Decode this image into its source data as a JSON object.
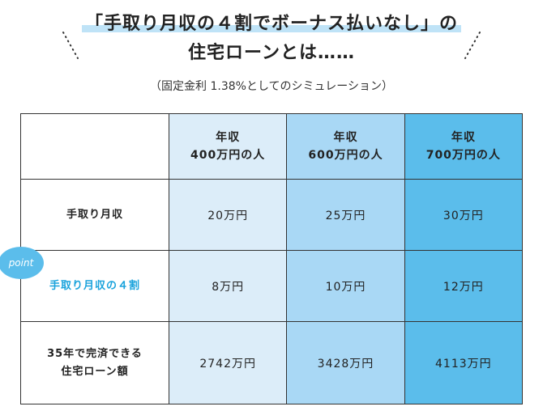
{
  "header": {
    "title_lines": [
      "「手取り月収の４割でボーナス払いなし」の",
      "住宅ローンとは……"
    ],
    "subtitle": "（固定金利 1.38%としてのシミュレーション）"
  },
  "table": {
    "columns": [
      [
        "年収",
        "400万円の人"
      ],
      [
        "年収",
        "600万円の人"
      ],
      [
        "年収",
        "700万円の人"
      ]
    ],
    "rows": [
      {
        "label": [
          "手取り月収"
        ],
        "cells": [
          "20万円",
          "25万円",
          "30万円"
        ]
      },
      {
        "label": [
          "手取り月収の４割"
        ],
        "badge": "point",
        "cells": [
          "8万円",
          "10万円",
          "12万円"
        ]
      },
      {
        "label": [
          "35年で完済できる",
          "住宅ローン額"
        ],
        "cells": [
          "2742万円",
          "3428万円",
          "4113万円"
        ]
      }
    ]
  }
}
